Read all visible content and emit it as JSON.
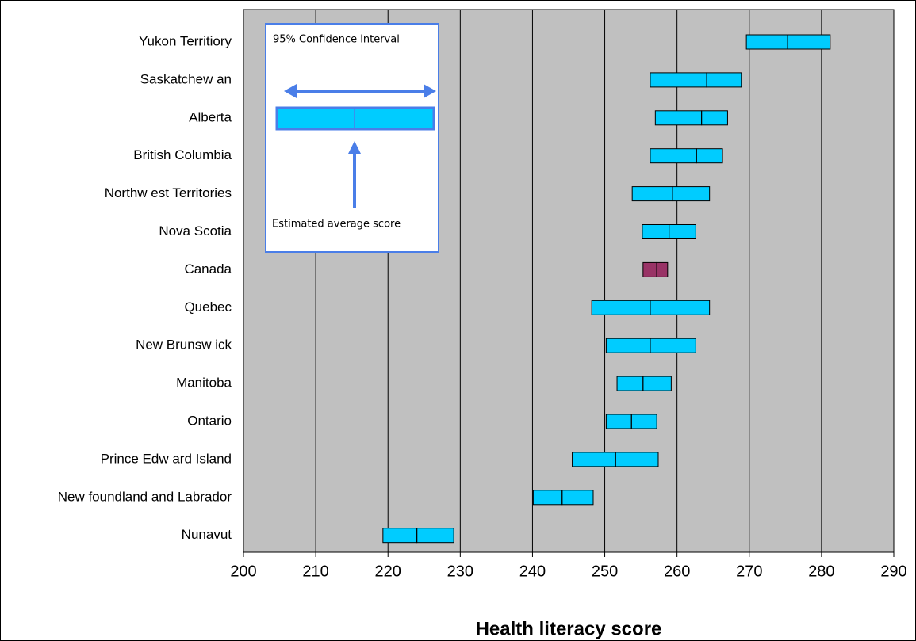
{
  "chart_data": {
    "type": "interval",
    "x_label": "Health literacy score",
    "categories": [
      "Yukon Territiory",
      "Saskatchew an",
      "Alberta",
      "British Columbia",
      "Northw est Territories",
      "Nova Scotia",
      "Canada",
      "Quebec",
      "New Brunsw ick",
      "Manitoba",
      "Ontario",
      "Prince Edw ard Island",
      "New foundland and Labrador",
      "Nunavut"
    ],
    "low": [
      269.6,
      256.3,
      257.0,
      256.3,
      253.8,
      255.2,
      255.3,
      248.2,
      250.2,
      251.7,
      250.2,
      245.5,
      240.1,
      219.3
    ],
    "mean": [
      275.3,
      264.1,
      263.4,
      262.7,
      259.4,
      258.9,
      257.2,
      256.3,
      256.3,
      255.3,
      253.7,
      251.5,
      244.1,
      224.0
    ],
    "high": [
      281.2,
      268.9,
      267.0,
      266.3,
      264.5,
      262.6,
      258.7,
      264.5,
      262.6,
      259.2,
      257.2,
      257.4,
      248.4,
      229.1
    ],
    "colors": [
      "#00ccff",
      "#00ccff",
      "#00ccff",
      "#00ccff",
      "#00ccff",
      "#00ccff",
      "#993366",
      "#00ccff",
      "#00ccff",
      "#00ccff",
      "#00ccff",
      "#00ccff",
      "#00ccff",
      "#00ccff"
    ],
    "xlim": [
      200,
      290
    ],
    "xticks": [
      200,
      210,
      220,
      230,
      240,
      250,
      260,
      270,
      280,
      290
    ],
    "grid": true,
    "annotations": [
      "95% Confidence interval",
      "Estimated average score"
    ]
  }
}
